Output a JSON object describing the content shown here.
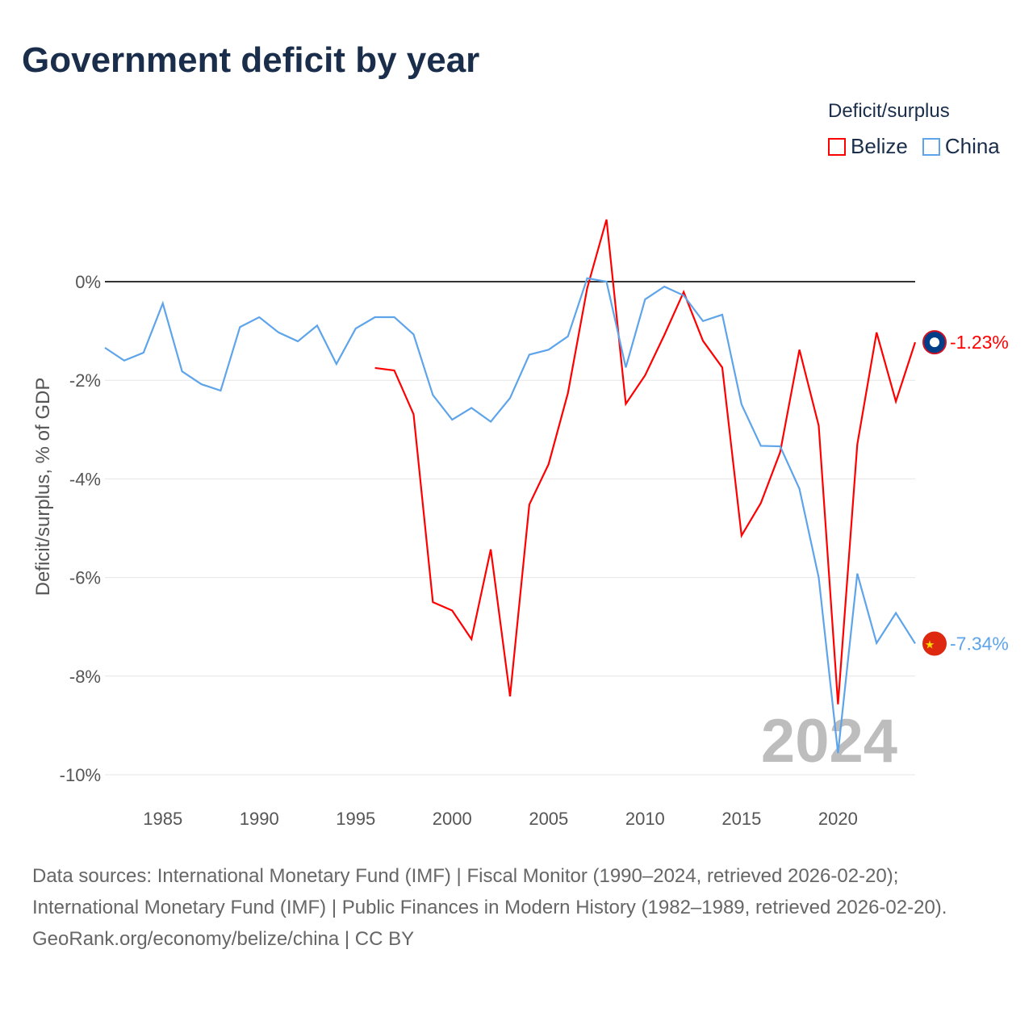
{
  "title": "Government deficit by year",
  "legend": {
    "title": "Deficit/surplus",
    "items": [
      {
        "label": "Belize",
        "color": "#ff0000"
      },
      {
        "label": "China",
        "color": "#5ea4ea"
      }
    ]
  },
  "footer": {
    "sources": "Data sources: International Monetary Fund (IMF) | Fiscal Monitor (1990–2024, retrieved 2026-02-20); International Monetary Fund (IMF) | Public Finances in Modern History (1982–1989, retrieved 2026-02-20).",
    "credit": "GeoRank.org/economy/belize/china | CC BY"
  },
  "chart_data": {
    "type": "line",
    "ylabel": "Deficit/surplus, % of GDP",
    "xlim": [
      1982,
      2024
    ],
    "ylim": [
      -10,
      1.3
    ],
    "xticks": [
      1985,
      1990,
      1995,
      2000,
      2005,
      2010,
      2015,
      2020
    ],
    "yticks": [
      0,
      -2,
      -4,
      -6,
      -8,
      -10
    ],
    "ytick_labels": [
      "0%",
      "-2%",
      "-4%",
      "-6%",
      "-8%",
      "-10%"
    ],
    "year_watermark": "2024",
    "series": [
      {
        "name": "Belize",
        "color": "#ff0000",
        "end_label": "-1.23%",
        "start": 1996,
        "values": [
          -1.75,
          -1.8,
          -2.69,
          -6.5,
          -6.67,
          -7.25,
          -5.43,
          -8.41,
          -4.52,
          -3.7,
          -2.26,
          -0.13,
          1.26,
          -2.48,
          -1.9,
          -1.08,
          -0.21,
          -1.2,
          -1.74,
          -5.15,
          -4.49,
          -3.46,
          -1.38,
          -2.92,
          -8.57,
          -3.3,
          -1.03,
          -2.43,
          -1.23
        ]
      },
      {
        "name": "China",
        "color": "#5ea4ea",
        "end_label": "-7.34%",
        "start": 1982,
        "values": [
          -1.34,
          -1.6,
          -1.44,
          -0.44,
          -1.82,
          -2.08,
          -2.21,
          -0.92,
          -0.72,
          -1.03,
          -1.21,
          -0.89,
          -1.67,
          -0.95,
          -0.72,
          -0.72,
          -1.07,
          -2.3,
          -2.8,
          -2.56,
          -2.84,
          -2.36,
          -1.48,
          -1.38,
          -1.11,
          0.07,
          0,
          -1.74,
          -0.36,
          -0.1,
          -0.28,
          -0.8,
          -0.67,
          -2.49,
          -3.33,
          -3.34,
          -4.2,
          -6.0,
          -9.56,
          -5.92,
          -7.33,
          -6.72,
          -7.34
        ]
      }
    ]
  }
}
